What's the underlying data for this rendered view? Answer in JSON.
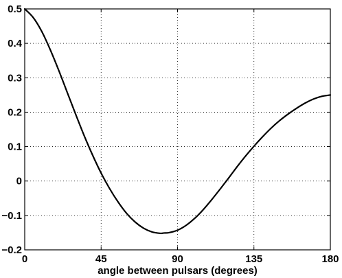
{
  "chart_data": {
    "type": "line",
    "title": "",
    "xlabel": "angle between pulsars (degrees)",
    "ylabel": "",
    "xlim": [
      0,
      180
    ],
    "ylim": [
      -0.2,
      0.5
    ],
    "xticks": [
      0,
      45,
      90,
      135,
      180
    ],
    "xtick_labels": [
      "0",
      "45",
      "90",
      "135",
      "180"
    ],
    "yticks": [
      -0.2,
      -0.1,
      0,
      0.1,
      0.2,
      0.3,
      0.4,
      0.5
    ],
    "ytick_labels": [
      "−0.2",
      "−0.1",
      "0",
      "0.1",
      "0.2",
      "0.3",
      "0.4",
      "0.5"
    ],
    "grid": true,
    "grid_style": "dotted",
    "line_color": "#000000",
    "series": [
      {
        "x": [
          0,
          5,
          10,
          15,
          20,
          25,
          30,
          35,
          40,
          45,
          50,
          55,
          60,
          65,
          70,
          75,
          80,
          82,
          85,
          90,
          95,
          100,
          105,
          110,
          115,
          120,
          125,
          130,
          135,
          140,
          145,
          150,
          155,
          160,
          165,
          170,
          175,
          180
        ],
        "y": [
          0.5,
          0.475,
          0.435,
          0.382,
          0.322,
          0.258,
          0.194,
          0.132,
          0.075,
          0.023,
          -0.022,
          -0.061,
          -0.094,
          -0.119,
          -0.137,
          -0.148,
          -0.152,
          -0.151,
          -0.15,
          -0.143,
          -0.129,
          -0.109,
          -0.084,
          -0.055,
          -0.024,
          0.008,
          0.041,
          0.072,
          0.101,
          0.128,
          0.153,
          0.175,
          0.194,
          0.211,
          0.226,
          0.238,
          0.246,
          0.25
        ]
      }
    ]
  }
}
